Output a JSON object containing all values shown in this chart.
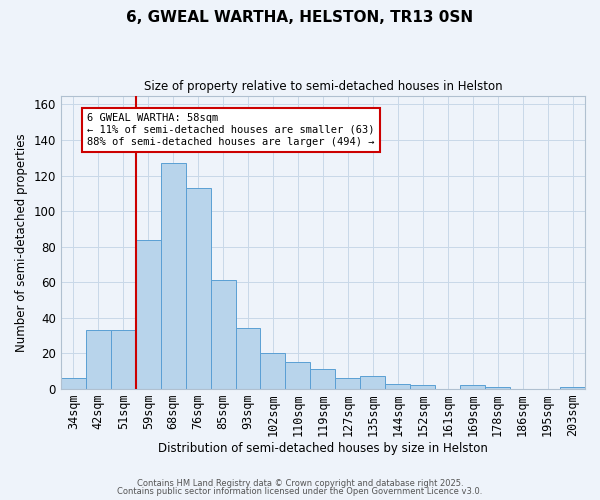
{
  "title": "6, GWEAL WARTHA, HELSTON, TR13 0SN",
  "subtitle": "Size of property relative to semi-detached houses in Helston",
  "xlabel": "Distribution of semi-detached houses by size in Helston",
  "ylabel": "Number of semi-detached properties",
  "bar_labels": [
    "34sqm",
    "42sqm",
    "51sqm",
    "59sqm",
    "68sqm",
    "76sqm",
    "85sqm",
    "93sqm",
    "102sqm",
    "110sqm",
    "119sqm",
    "127sqm",
    "135sqm",
    "144sqm",
    "152sqm",
    "161sqm",
    "169sqm",
    "178sqm",
    "186sqm",
    "195sqm",
    "203sqm"
  ],
  "bar_values": [
    6,
    33,
    33,
    84,
    127,
    113,
    61,
    34,
    20,
    15,
    11,
    6,
    7,
    3,
    2,
    0,
    2,
    1,
    0,
    0,
    1
  ],
  "bar_color": "#b8d4eb",
  "bar_edge_color": "#5a9fd4",
  "grid_color": "#c8d8e8",
  "background_color": "#eef3fa",
  "vline_color": "#cc0000",
  "annotation_text": "6 GWEAL WARTHA: 58sqm\n← 11% of semi-detached houses are smaller (63)\n88% of semi-detached houses are larger (494) →",
  "ylim": [
    0,
    165
  ],
  "yticks": [
    0,
    20,
    40,
    60,
    80,
    100,
    120,
    140,
    160
  ],
  "footer_line1": "Contains HM Land Registry data © Crown copyright and database right 2025.",
  "footer_line2": "Contains public sector information licensed under the Open Government Licence v3.0."
}
